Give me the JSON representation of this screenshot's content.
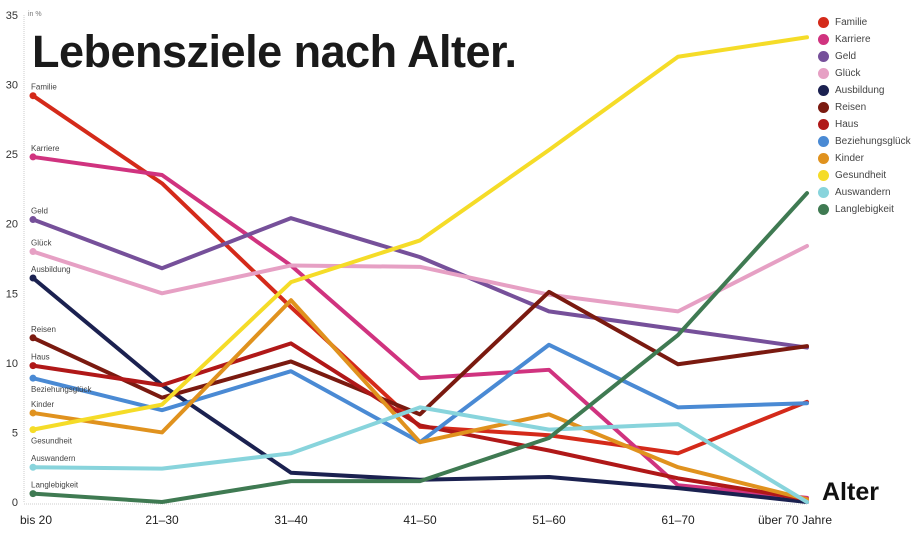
{
  "chart_data": {
    "type": "line",
    "title": "Lebensziele nach Alter.",
    "ylabel": "in %",
    "xlabel": "Alter",
    "ylim": [
      0,
      35
    ],
    "yticks": [
      0,
      5,
      10,
      15,
      20,
      25,
      30,
      35
    ],
    "categories": [
      "bis 20",
      "21–30",
      "31–40",
      "41–50",
      "51–60",
      "61–70",
      "über 70 Jahre"
    ],
    "grid": false,
    "legend_placement": "top-right",
    "series": [
      {
        "name": "Familie",
        "color": "#d42a1a",
        "values": [
          29.2,
          22.9,
          14.0,
          5.4,
          4.8,
          3.5,
          7.2
        ]
      },
      {
        "name": "Karriere",
        "color": "#d0337f",
        "values": [
          24.8,
          23.5,
          17.0,
          8.9,
          9.5,
          1.2,
          0.3
        ]
      },
      {
        "name": "Geld",
        "color": "#76509a",
        "values": [
          20.3,
          16.8,
          20.4,
          17.6,
          13.7,
          12.4,
          11.1
        ]
      },
      {
        "name": "Glück",
        "color": "#e6a0c4",
        "values": [
          18.0,
          15.0,
          17.0,
          16.9,
          14.9,
          13.7,
          18.4
        ]
      },
      {
        "name": "Ausbildung",
        "color": "#1b2150",
        "values": [
          16.1,
          8.4,
          2.1,
          1.6,
          1.8,
          1.0,
          0.0
        ]
      },
      {
        "name": "Reisen",
        "color": "#7a1a10",
        "values": [
          11.8,
          7.5,
          10.1,
          6.3,
          15.1,
          9.9,
          11.2
        ]
      },
      {
        "name": "Haus",
        "color": "#b01818",
        "values": [
          9.8,
          8.4,
          11.4,
          5.5,
          3.7,
          1.7,
          0.2
        ]
      },
      {
        "name": "Beziehungsglück",
        "color": "#4a8ad4",
        "values": [
          8.9,
          6.6,
          9.4,
          4.3,
          11.3,
          6.8,
          7.1
        ]
      },
      {
        "name": "Kinder",
        "color": "#e0921e",
        "values": [
          6.4,
          5.0,
          14.5,
          4.3,
          6.3,
          2.5,
          0.2
        ]
      },
      {
        "name": "Gesundheit",
        "color": "#f5dc28",
        "values": [
          5.2,
          7.0,
          15.8,
          18.8,
          25.3,
          32.0,
          33.4
        ]
      },
      {
        "name": "Auswandern",
        "color": "#88d4dc",
        "values": [
          2.5,
          2.4,
          3.5,
          6.8,
          5.2,
          5.6,
          0.0
        ]
      },
      {
        "name": "Langlebigkeit",
        "color": "#3f7a52",
        "values": [
          0.6,
          0.0,
          1.5,
          1.5,
          4.6,
          12.0,
          22.2
        ]
      }
    ]
  }
}
